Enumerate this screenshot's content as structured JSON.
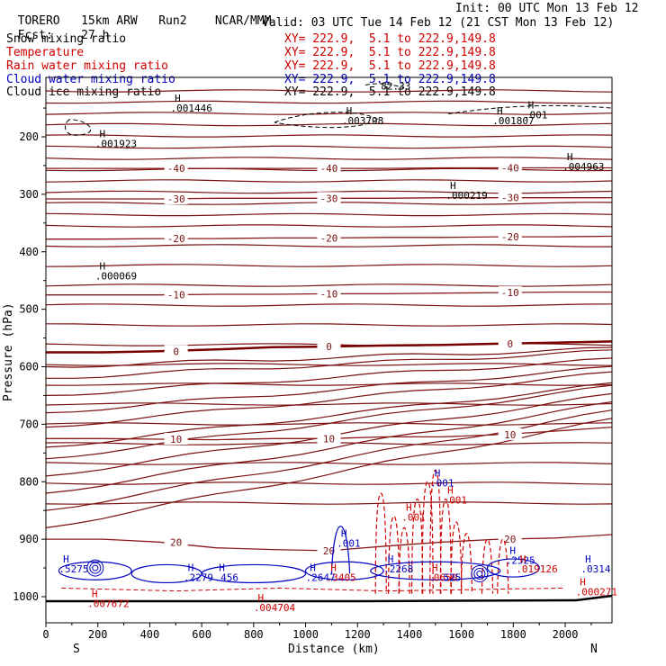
{
  "header": {
    "model": "TORERO",
    "resolution": "15km ARW",
    "run": "Run2",
    "org": "NCAR/MMM",
    "init": "Init: 00 UTC Mon 13 Feb 12",
    "fcst_label": "Fcst:",
    "fcst_value": "27 h",
    "valid": "Valid: 03 UTC Tue 14 Feb 12 (21 CST Mon 13 Feb 12)"
  },
  "legend": [
    {
      "name": "Snow mixing ratio",
      "xy": "XY= 222.9,  5.1 to 222.9,149.8",
      "color": "#000000"
    },
    {
      "name": "Temperature",
      "xy": "XY= 222.9,  5.1 to 222.9,149.8",
      "color": "#d00000"
    },
    {
      "name": "Rain water mixing ratio",
      "xy": "XY= 222.9,  5.1 to 222.9,149.8",
      "color": "#d00000"
    },
    {
      "name": "Cloud water mixing ratio",
      "xy": "XY= 222.9,  5.1 to 222.9,149.8",
      "color": "#0000c0"
    },
    {
      "name": "Cloud ice mixing ratio",
      "xy": "XY= 222.9,  5.1 to 222.9,149.8",
      "color": "#000000"
    }
  ],
  "chart_data": {
    "type": "contour",
    "title": "Vertical cross section",
    "xlabel": "Distance (km)",
    "ylabel": "Pressure (hPa)",
    "xlim": [
      0,
      2180
    ],
    "ylim": [
      1050,
      100
    ],
    "x_ticks": [
      0,
      200,
      400,
      600,
      800,
      1000,
      1200,
      1400,
      1600,
      1800,
      2000
    ],
    "y_ticks": [
      200,
      300,
      400,
      500,
      600,
      700,
      800,
      900,
      1000
    ],
    "x_end_labels": {
      "left": "S",
      "right": "N"
    },
    "temperature_isotherms": [
      {
        "value": 0,
        "label": "0",
        "pressure": [
          575,
          575,
          573,
          570,
          566,
          565,
          563,
          562,
          560,
          558,
          556
        ]
      },
      {
        "value": -10,
        "label": "-10",
        "pressure": [
          475,
          475,
          475,
          474,
          474,
          473,
          473,
          472,
          471,
          470,
          470
        ]
      },
      {
        "value": -20,
        "label": "-20",
        "pressure": [
          378,
          378,
          377,
          377,
          376,
          376,
          375,
          375,
          374,
          374,
          373
        ]
      },
      {
        "value": -30,
        "label": "-30",
        "pressure": [
          308,
          308,
          308,
          307,
          307,
          307,
          307,
          306,
          306,
          306,
          306
        ]
      },
      {
        "value": -40,
        "label": "-40",
        "pressure": [
          255,
          255,
          255,
          255,
          255,
          255,
          255,
          254,
          254,
          254,
          254
        ]
      },
      {
        "value": 10,
        "label": "10",
        "pressure": [
          725,
          725,
          726,
          727,
          725,
          725,
          722,
          722,
          718,
          712,
          705
        ]
      },
      {
        "value": 20,
        "label": "20",
        "pressure": [
          900,
          900,
          905,
          915,
          918,
          920,
          912,
          905,
          900,
          898,
          892
        ]
      }
    ],
    "max_labels": [
      {
        "x": 160,
        "p": 1010,
        "text": ".007672"
      },
      {
        "x": 530,
        "p": 965,
        "text": ".2279"
      },
      {
        "x": 650,
        "p": 965,
        "text": ".456"
      },
      {
        "x": 800,
        "p": 1017,
        "text": ".004704"
      },
      {
        "x": 1000,
        "p": 965,
        "text": ".2647"
      },
      {
        "x": 1080,
        "p": 965,
        "text": ".3405"
      },
      {
        "x": 1300,
        "p": 950,
        "text": ".2268"
      },
      {
        "x": 1470,
        "p": 965,
        "text": ".0650"
      },
      {
        "x": 1530,
        "p": 965,
        "text": "525"
      },
      {
        "x": 1770,
        "p": 935,
        "text": ".2525"
      },
      {
        "x": 1810,
        "p": 950,
        "text": ".019126"
      },
      {
        "x": 2060,
        "p": 950,
        "text": ".0314"
      },
      {
        "x": 2040,
        "p": 990,
        "text": ".000271"
      },
      {
        "x": 50,
        "p": 950,
        "text": ".5275"
      },
      {
        "x": 190,
        "p": 210,
        "text": ".001923"
      },
      {
        "x": 480,
        "p": 148,
        "text": ".001446"
      },
      {
        "x": 1140,
        "p": 170,
        "text": ".003798"
      },
      {
        "x": 1720,
        "p": 170,
        "text": ".001807"
      },
      {
        "x": 1990,
        "p": 250,
        "text": ".004963"
      },
      {
        "x": 1540,
        "p": 300,
        "text": ".000219"
      },
      {
        "x": 190,
        "p": 440,
        "text": ".000069"
      },
      {
        "x": 1120,
        "p": 905,
        "text": ".001"
      },
      {
        "x": 1370,
        "p": 860,
        "text": ".001"
      },
      {
        "x": 1480,
        "p": 800,
        "text": ".001"
      },
      {
        "x": 1530,
        "p": 830,
        "text": ".001"
      },
      {
        "x": 1840,
        "p": 160,
        "text": ".001"
      },
      {
        "x": 1290,
        "p": 110,
        "text": "82.33"
      }
    ]
  }
}
